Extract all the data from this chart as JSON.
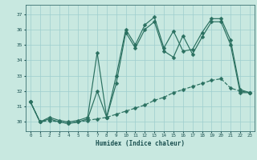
{
  "xlabel": "Humidex (Indice chaleur)",
  "bg_color": "#c8e8e0",
  "line_color": "#2a7060",
  "grid_color": "#9ecece",
  "xlim": [
    -0.5,
    23.5
  ],
  "ylim": [
    29.4,
    37.6
  ],
  "yticks": [
    30,
    31,
    32,
    33,
    34,
    35,
    36,
    37
  ],
  "xticks": [
    0,
    1,
    2,
    3,
    4,
    5,
    6,
    7,
    8,
    9,
    10,
    11,
    12,
    13,
    14,
    15,
    16,
    17,
    18,
    19,
    20,
    21,
    22,
    23
  ],
  "line_spiky_x": [
    0,
    1,
    2,
    3,
    4,
    5,
    6,
    7,
    8,
    9,
    10,
    11,
    12,
    13,
    14,
    15,
    16,
    17,
    18,
    19,
    20,
    21,
    22,
    23
  ],
  "line_spiky_y": [
    31.3,
    30.0,
    30.3,
    30.1,
    30.0,
    30.1,
    30.3,
    34.5,
    30.3,
    33.0,
    36.0,
    35.0,
    36.3,
    36.8,
    34.8,
    35.9,
    34.6,
    34.7,
    35.8,
    36.7,
    36.7,
    35.3,
    32.1,
    31.9
  ],
  "line_smooth_x": [
    0,
    1,
    2,
    3,
    4,
    5,
    6,
    7,
    8,
    9,
    10,
    11,
    12,
    13,
    14,
    15,
    16,
    17,
    18,
    19,
    20,
    21,
    22,
    23
  ],
  "line_smooth_y": [
    31.3,
    30.0,
    30.2,
    30.0,
    29.9,
    30.0,
    30.2,
    32.0,
    30.3,
    32.5,
    35.8,
    34.8,
    36.0,
    36.5,
    34.6,
    34.2,
    35.6,
    34.4,
    35.5,
    36.5,
    36.5,
    35.0,
    31.9,
    31.9
  ],
  "line_lower_x": [
    0,
    1,
    2,
    3,
    4,
    5,
    6,
    7,
    8,
    9,
    10,
    11,
    12,
    13,
    14,
    15,
    16,
    17,
    18,
    19,
    20,
    21,
    22,
    23
  ],
  "line_lower_y": [
    31.3,
    30.0,
    30.1,
    30.0,
    29.9,
    30.0,
    30.1,
    30.2,
    30.3,
    30.5,
    30.7,
    30.9,
    31.1,
    31.4,
    31.6,
    31.9,
    32.1,
    32.3,
    32.5,
    32.7,
    32.8,
    32.2,
    32.0,
    31.9
  ]
}
